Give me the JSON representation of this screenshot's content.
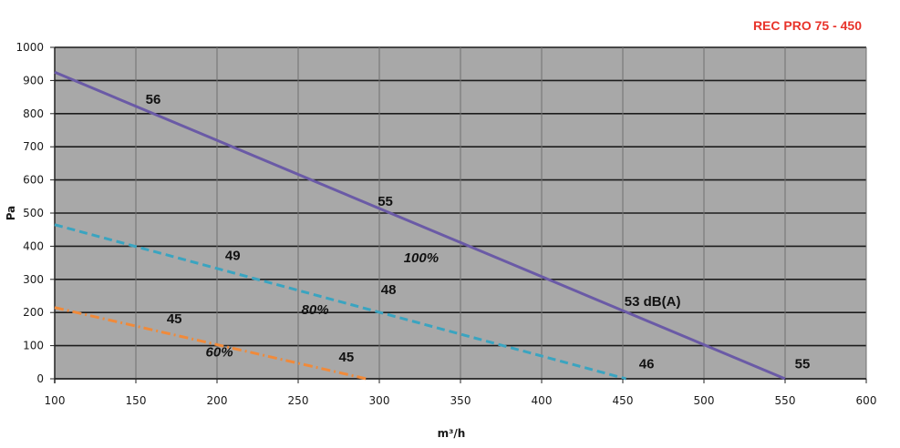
{
  "chart_data": {
    "type": "line",
    "title": "REC PRO 75  - 450",
    "xlabel": "m³/h",
    "ylabel": "Pa",
    "xlim": [
      100,
      600
    ],
    "ylim": [
      0,
      1000
    ],
    "x_ticks": [
      100,
      150,
      200,
      250,
      300,
      350,
      400,
      450,
      500,
      550,
      600
    ],
    "y_ticks": [
      0,
      100,
      200,
      300,
      400,
      500,
      600,
      700,
      800,
      900,
      1000
    ],
    "grid": true,
    "series": [
      {
        "name": "100%",
        "style": "solid",
        "color": "#6a5aa6",
        "x": [
          100,
          550
        ],
        "y": [
          925,
          0
        ]
      },
      {
        "name": "80%",
        "style": "dashed",
        "color": "#3aa4c0",
        "x": [
          100,
          452
        ],
        "y": [
          465,
          0
        ]
      },
      {
        "name": "60%",
        "style": "dashdot",
        "color": "#f08a3a",
        "x": [
          100,
          292
        ],
        "y": [
          215,
          0
        ]
      }
    ],
    "annotations": [
      {
        "text": "56",
        "x": 156,
        "y": 830,
        "italic": false
      },
      {
        "text": "55",
        "x": 299,
        "y": 522,
        "italic": false
      },
      {
        "text": "100%",
        "x": 315,
        "y": 352,
        "italic": true
      },
      {
        "text": "49",
        "x": 205,
        "y": 358,
        "italic": false
      },
      {
        "text": "48",
        "x": 301,
        "y": 255,
        "italic": false
      },
      {
        "text": "80%",
        "x": 252,
        "y": 195,
        "italic": true
      },
      {
        "text": "53 dB(A)",
        "x": 451,
        "y": 220,
        "italic": false
      },
      {
        "text": "45",
        "x": 169,
        "y": 167,
        "italic": false
      },
      {
        "text": "60%",
        "x": 193,
        "y": 67,
        "italic": true
      },
      {
        "text": "45",
        "x": 275,
        "y": 52,
        "italic": false
      },
      {
        "text": "46",
        "x": 460,
        "y": 32,
        "italic": false
      },
      {
        "text": "55",
        "x": 556,
        "y": 32,
        "italic": false
      }
    ],
    "colors": {
      "plot_background": "#a8a8a8",
      "grid": "#1c1c1c",
      "title": "#e8332a"
    }
  }
}
